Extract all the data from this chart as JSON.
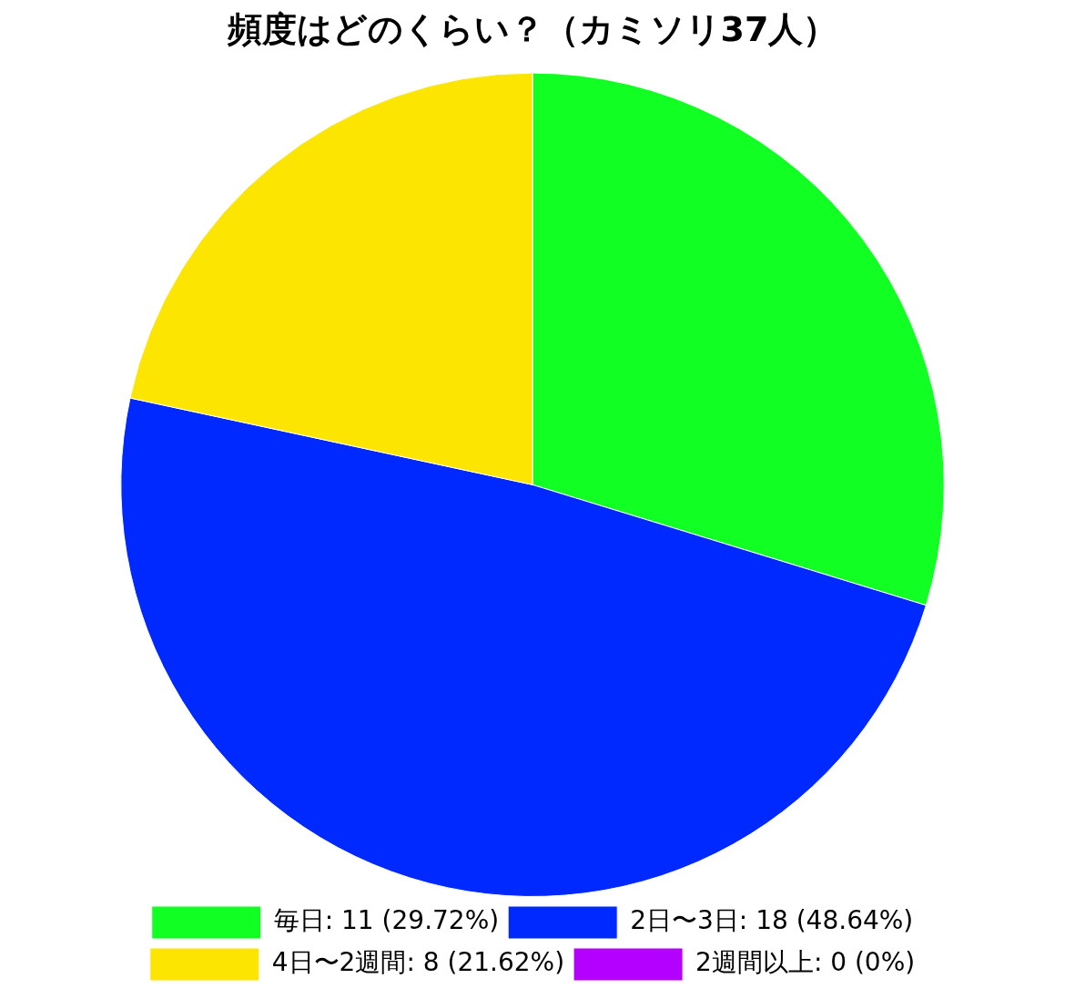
{
  "chart_data": {
    "type": "pie",
    "title": "頻度はどのくらい？（カミソリ37人）",
    "categories": [
      "毎日: 11 (29.72%)",
      "2日〜3日: 18 (48.64%)",
      "4日〜2週間: 8 (21.62%)",
      "2週間以上: 0 (0%)"
    ],
    "values": [
      11,
      18,
      8,
      0
    ],
    "colors": [
      "#12ff24",
      "#0029ff",
      "#fce500",
      "#b300ff"
    ],
    "legend": "bottom"
  }
}
